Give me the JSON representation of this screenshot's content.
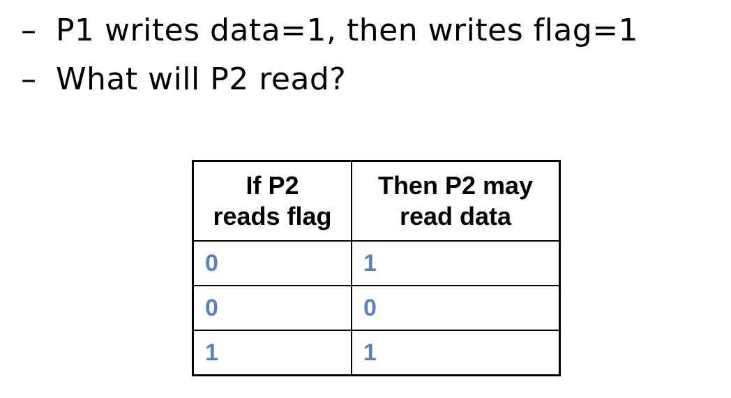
{
  "bullets": [
    {
      "dash": "–",
      "text": "P1 writes data=1, then writes flag=1"
    },
    {
      "dash": "–",
      "text": "What will P2 read?"
    }
  ],
  "table": {
    "headers": [
      {
        "line1": "If P2",
        "line2": "reads flag"
      },
      {
        "line1": "Then P2 may",
        "line2": "read data"
      }
    ],
    "rows": [
      [
        "0",
        "1"
      ],
      [
        "0",
        "0"
      ],
      [
        "1",
        "1"
      ]
    ]
  },
  "colors": {
    "cell_text": "#5b80bb",
    "border": "#000000"
  }
}
